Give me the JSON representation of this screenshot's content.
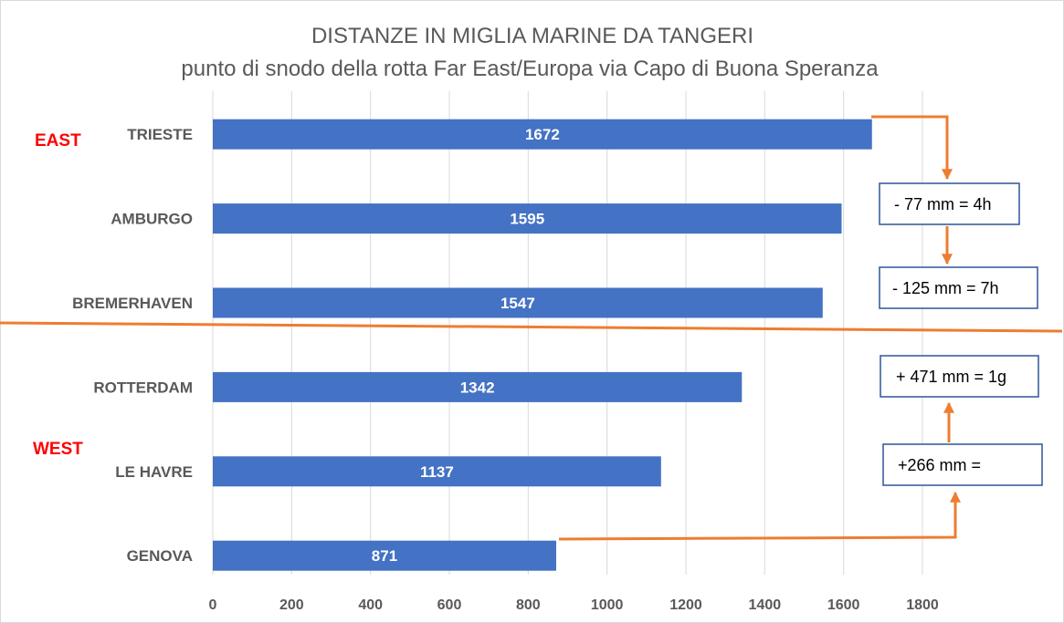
{
  "colors": {
    "bar": "#4472c4",
    "region": "#ff0000",
    "annotation": "#ed7d31",
    "grid": "#d9d9d9",
    "box_border": "#2f5597",
    "text": "#595959"
  },
  "chart_data": {
    "type": "bar",
    "orientation": "horizontal",
    "title": "DISTANZE IN MIGLIA MARINE DA TANGERI",
    "subtitle": "punto di snodo della rotta Far East/Europa via Capo di Buona Speranza",
    "categories": [
      "TRIESTE",
      "AMBURGO",
      "BREMERHAVEN",
      "ROTTERDAM",
      "LE HAVRE",
      "GENOVA"
    ],
    "values": [
      1672,
      1595,
      1547,
      1342,
      1137,
      871
    ],
    "data_labels": [
      "1672",
      "1595",
      "1547",
      "1342",
      "1137",
      "871"
    ],
    "xlim": [
      0,
      1800
    ],
    "xticks": [
      0,
      200,
      400,
      600,
      800,
      1000,
      1200,
      1400,
      1600,
      1800
    ],
    "xtick_labels": [
      "0",
      "200",
      "400",
      "600",
      "800",
      "1000",
      "1200",
      "1400",
      "1600",
      "1800"
    ],
    "grid": true,
    "region_labels": [
      "EAST",
      "WEST"
    ],
    "annotations": [
      "- 77 mm = 4h",
      "- 125 mm = 7h",
      "+ 471 mm = 1g",
      "+266 mm ="
    ]
  }
}
